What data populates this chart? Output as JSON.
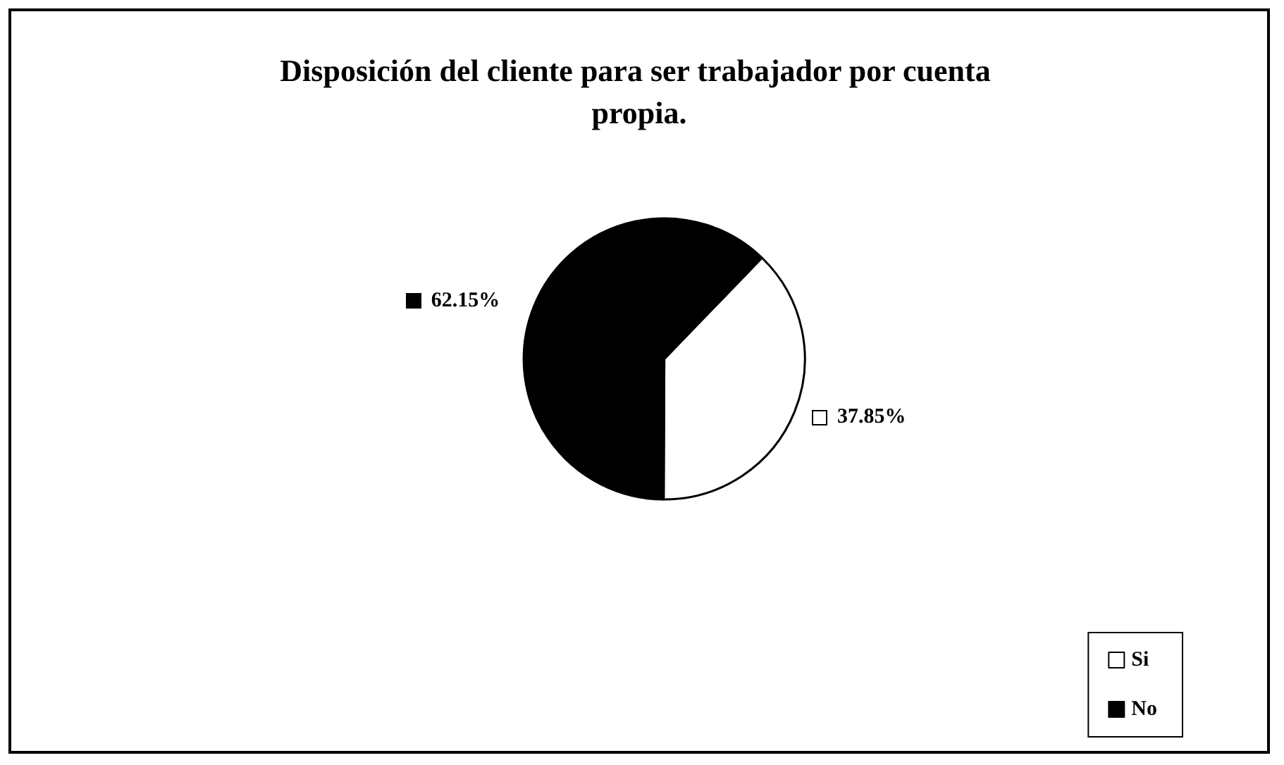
{
  "chart_data": {
    "type": "pie",
    "title": "Disposición del cliente para ser trabajador por cuenta propia.",
    "categories": [
      "Si",
      "No"
    ],
    "values": [
      37.85,
      62.15
    ],
    "colors": [
      "#ffffff",
      "#000000"
    ],
    "value_labels": [
      "37.85%",
      "62.15%"
    ],
    "legend": "bottom right"
  }
}
